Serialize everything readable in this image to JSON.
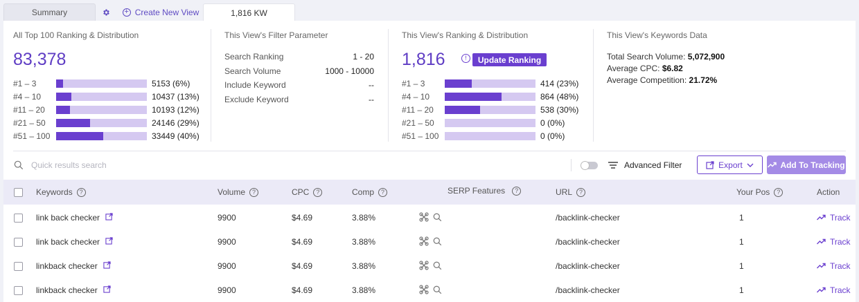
{
  "tabs": {
    "summary": "Summary",
    "create_view": "Create New View",
    "active": "1,816 KW"
  },
  "all_top": {
    "title": "All Top 100 Ranking & Distribution",
    "total": "83,378",
    "rows": [
      {
        "label": "#1 – 3",
        "value": "5153 (6%)",
        "pct": 6
      },
      {
        "label": "#4 – 10",
        "value": "10437 (13%)",
        "pct": 13
      },
      {
        "label": "#11 – 20",
        "value": "10193 (12%)",
        "pct": 12
      },
      {
        "label": "#21 – 50",
        "value": "24146 (29%)",
        "pct": 29
      },
      {
        "label": "#51 – 100",
        "value": "33449 (40%)",
        "pct": 40
      }
    ]
  },
  "filter": {
    "title": "This View's Filter Parameter",
    "rows": [
      {
        "label": "Search Ranking",
        "value": "1 - 20"
      },
      {
        "label": "Search Volume",
        "value": "1000 - 10000"
      },
      {
        "label": "Include Keyword",
        "value": "--"
      },
      {
        "label": "Exclude Keyword",
        "value": "--"
      }
    ]
  },
  "view_ranking": {
    "title": "This View's Ranking & Distribution",
    "total": "1,816",
    "update_label": "Update Ranking",
    "rows": [
      {
        "label": "#1 – 3",
        "value": "414 (23%)",
        "pct": 23
      },
      {
        "label": "#4 – 10",
        "value": "864 (48%)",
        "pct": 48
      },
      {
        "label": "#11 – 20",
        "value": "538 (30%)",
        "pct": 30
      },
      {
        "label": "#21 – 50",
        "value": "0 (0%)",
        "pct": 0
      },
      {
        "label": "#51 – 100",
        "value": "0 (0%)",
        "pct": 0
      }
    ]
  },
  "keywords_data": {
    "title": "This View's Keywords Data",
    "volume_label": "Total Search Volume:",
    "volume_value": "5,072,900",
    "cpc_label": "Average CPC:",
    "cpc_value": "$6.82",
    "comp_label": "Average Competition:",
    "comp_value": "21.72%"
  },
  "toolbar": {
    "search_placeholder": "Quick results search",
    "advanced_filter": "Advanced Filter",
    "export": "Export",
    "add_tracking": "Add To Tracking"
  },
  "table": {
    "headers": {
      "keywords": "Keywords",
      "volume": "Volume",
      "cpc": "CPC",
      "comp": "Comp",
      "serp": "SERP Features",
      "url": "URL",
      "pos": "Your Pos",
      "action": "Action"
    },
    "rows": [
      {
        "keyword": "link back checker",
        "volume": "9900",
        "cpc": "$4.69",
        "comp": "3.88%",
        "url": "/backlink-checker",
        "pos": "1",
        "action": "Track"
      },
      {
        "keyword": "link back checker",
        "volume": "9900",
        "cpc": "$4.69",
        "comp": "3.88%",
        "url": "/backlink-checker",
        "pos": "1",
        "action": "Track"
      },
      {
        "keyword": "linkback checker",
        "volume": "9900",
        "cpc": "$4.69",
        "comp": "3.88%",
        "url": "/backlink-checker",
        "pos": "1",
        "action": "Track"
      },
      {
        "keyword": "linkback checker",
        "volume": "9900",
        "cpc": "$4.69",
        "comp": "3.88%",
        "url": "/backlink-checker",
        "pos": "1",
        "action": "Track"
      }
    ]
  },
  "colors": {
    "accent": "#6a3fcf",
    "bar_bg": "#d5c9f1",
    "header_bg": "#ebeaf7"
  }
}
